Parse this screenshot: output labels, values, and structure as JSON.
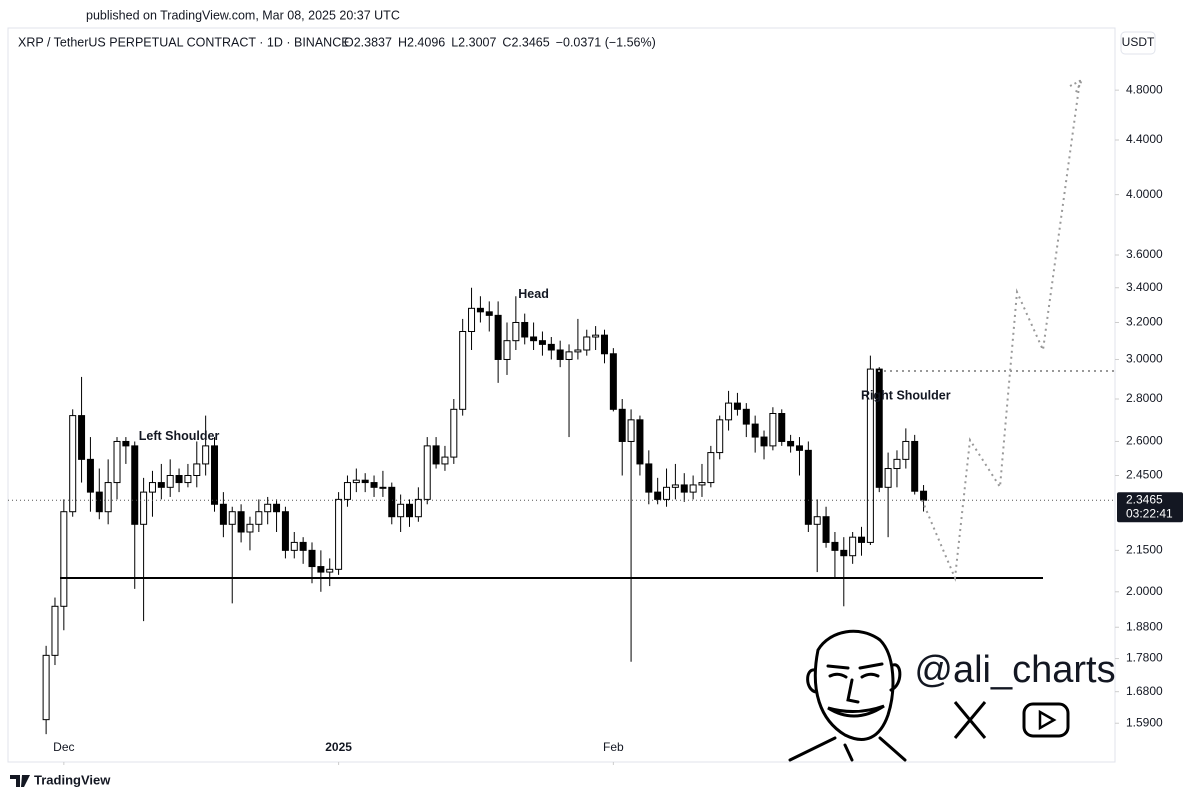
{
  "chart_data": {
    "type": "candlestick",
    "published": "published on TradingView.com, Mar 08, 2025 20:37 UTC",
    "symbol": "XRP / TetherUS PERPETUAL CONTRACT · 1D · BINANCE",
    "ohlc_text": [
      "O2.3837",
      "H2.4096",
      "L2.3007",
      "C2.3465",
      "−0.0371 (−1.56%)"
    ],
    "currency": "USDT",
    "price_label": "2.3465",
    "countdown": "03:22:41",
    "brand": "TradingView",
    "handle": "@ali_charts",
    "annotations": [
      {
        "text": "Left Shoulder",
        "index": 15
      },
      {
        "text": "Head",
        "index": 55
      },
      {
        "text": "Right Shoulder",
        "index": 97
      }
    ],
    "log_scale": true,
    "up_color": "#ffffff",
    "down_color": "#000000",
    "candles": [
      [
        1.6,
        1.82,
        1.56,
        1.79
      ],
      [
        1.79,
        1.98,
        1.76,
        1.95
      ],
      [
        1.95,
        2.35,
        1.87,
        2.3
      ],
      [
        2.3,
        2.75,
        2.28,
        2.72
      ],
      [
        2.72,
        2.91,
        2.42,
        2.52
      ],
      [
        2.52,
        2.62,
        2.3,
        2.38
      ],
      [
        2.38,
        2.48,
        2.27,
        2.3
      ],
      [
        2.3,
        2.52,
        2.25,
        2.42
      ],
      [
        2.42,
        2.62,
        2.35,
        2.6
      ],
      [
        2.6,
        2.62,
        2.5,
        2.58
      ],
      [
        2.58,
        2.6,
        2.01,
        2.25
      ],
      [
        2.25,
        2.44,
        1.9,
        2.38
      ],
      [
        2.38,
        2.47,
        2.28,
        2.42
      ],
      [
        2.42,
        2.5,
        2.35,
        2.4
      ],
      [
        2.4,
        2.52,
        2.36,
        2.45
      ],
      [
        2.45,
        2.48,
        2.38,
        2.42
      ],
      [
        2.42,
        2.5,
        2.4,
        2.45
      ],
      [
        2.45,
        2.6,
        2.4,
        2.5
      ],
      [
        2.5,
        2.72,
        2.45,
        2.58
      ],
      [
        2.58,
        2.62,
        2.3,
        2.33
      ],
      [
        2.33,
        2.38,
        2.2,
        2.25
      ],
      [
        2.25,
        2.32,
        1.96,
        2.3
      ],
      [
        2.3,
        2.33,
        2.18,
        2.22
      ],
      [
        2.22,
        2.28,
        2.15,
        2.25
      ],
      [
        2.25,
        2.35,
        2.22,
        2.3
      ],
      [
        2.3,
        2.36,
        2.25,
        2.33
      ],
      [
        2.33,
        2.35,
        2.22,
        2.3
      ],
      [
        2.3,
        2.32,
        2.12,
        2.15
      ],
      [
        2.15,
        2.22,
        2.12,
        2.18
      ],
      [
        2.18,
        2.2,
        2.1,
        2.15
      ],
      [
        2.15,
        2.18,
        2.03,
        2.09
      ],
      [
        2.09,
        2.15,
        2.0,
        2.07
      ],
      [
        2.07,
        2.12,
        2.02,
        2.08
      ],
      [
        2.08,
        2.38,
        2.06,
        2.35
      ],
      [
        2.35,
        2.45,
        2.32,
        2.42
      ],
      [
        2.42,
        2.48,
        2.38,
        2.43
      ],
      [
        2.43,
        2.46,
        2.38,
        2.42
      ],
      [
        2.42,
        2.45,
        2.36,
        2.4
      ],
      [
        2.4,
        2.47,
        2.36,
        2.4
      ],
      [
        2.4,
        2.42,
        2.25,
        2.28
      ],
      [
        2.28,
        2.37,
        2.22,
        2.33
      ],
      [
        2.33,
        2.35,
        2.24,
        2.28
      ],
      [
        2.28,
        2.4,
        2.26,
        2.35
      ],
      [
        2.35,
        2.62,
        2.33,
        2.58
      ],
      [
        2.58,
        2.62,
        2.48,
        2.5
      ],
      [
        2.5,
        2.58,
        2.47,
        2.53
      ],
      [
        2.53,
        2.8,
        2.5,
        2.75
      ],
      [
        2.75,
        3.22,
        2.72,
        3.15
      ],
      [
        3.15,
        3.4,
        3.05,
        3.28
      ],
      [
        3.28,
        3.35,
        3.2,
        3.26
      ],
      [
        3.26,
        3.32,
        3.15,
        3.24
      ],
      [
        3.24,
        3.32,
        2.88,
        3.0
      ],
      [
        3.0,
        3.2,
        2.92,
        3.1
      ],
      [
        3.1,
        3.35,
        3.05,
        3.2
      ],
      [
        3.2,
        3.25,
        3.08,
        3.12
      ],
      [
        3.12,
        3.2,
        3.05,
        3.1
      ],
      [
        3.1,
        3.15,
        3.02,
        3.08
      ],
      [
        3.08,
        3.12,
        3.0,
        3.05
      ],
      [
        3.05,
        3.1,
        2.96,
        3.0
      ],
      [
        3.0,
        3.08,
        2.62,
        3.04
      ],
      [
        3.04,
        3.22,
        3.0,
        3.05
      ],
      [
        3.05,
        3.16,
        3.02,
        3.12
      ],
      [
        3.12,
        3.18,
        3.05,
        3.13
      ],
      [
        3.13,
        3.16,
        2.98,
        3.03
      ],
      [
        3.03,
        3.06,
        2.74,
        2.75
      ],
      [
        2.75,
        2.8,
        2.45,
        2.6
      ],
      [
        2.6,
        2.75,
        1.77,
        2.7
      ],
      [
        2.7,
        2.72,
        2.45,
        2.5
      ],
      [
        2.5,
        2.56,
        2.33,
        2.38
      ],
      [
        2.38,
        2.44,
        2.33,
        2.35
      ],
      [
        2.35,
        2.48,
        2.32,
        2.4
      ],
      [
        2.4,
        2.5,
        2.35,
        2.41
      ],
      [
        2.41,
        2.46,
        2.34,
        2.38
      ],
      [
        2.38,
        2.45,
        2.35,
        2.41
      ],
      [
        2.41,
        2.5,
        2.36,
        2.42
      ],
      [
        2.42,
        2.58,
        2.4,
        2.55
      ],
      [
        2.55,
        2.72,
        2.52,
        2.7
      ],
      [
        2.7,
        2.84,
        2.65,
        2.78
      ],
      [
        2.78,
        2.83,
        2.72,
        2.75
      ],
      [
        2.75,
        2.78,
        2.62,
        2.68
      ],
      [
        2.68,
        2.72,
        2.55,
        2.62
      ],
      [
        2.62,
        2.65,
        2.52,
        2.58
      ],
      [
        2.58,
        2.76,
        2.56,
        2.73
      ],
      [
        2.73,
        2.75,
        2.58,
        2.6
      ],
      [
        2.6,
        2.63,
        2.55,
        2.58
      ],
      [
        2.58,
        2.62,
        2.45,
        2.56
      ],
      [
        2.56,
        2.6,
        2.22,
        2.25
      ],
      [
        2.25,
        2.35,
        2.07,
        2.28
      ],
      [
        2.28,
        2.32,
        2.16,
        2.18
      ],
      [
        2.18,
        2.22,
        2.05,
        2.15
      ],
      [
        2.15,
        2.2,
        1.95,
        2.13
      ],
      [
        2.13,
        2.22,
        2.1,
        2.2
      ],
      [
        2.2,
        2.24,
        2.13,
        2.18
      ],
      [
        2.18,
        3.02,
        2.17,
        2.95
      ],
      [
        2.95,
        2.96,
        2.38,
        2.4
      ],
      [
        2.4,
        2.55,
        2.2,
        2.48
      ],
      [
        2.48,
        2.56,
        2.4,
        2.52
      ],
      [
        2.52,
        2.66,
        2.48,
        2.6
      ],
      [
        2.6,
        2.63,
        2.37,
        2.3837
      ],
      [
        2.3837,
        2.4096,
        2.3007,
        2.3465
      ]
    ],
    "xlim": [
      -4.3,
      120.6
    ],
    "xticks": [
      {
        "value": 2,
        "label": "Dec"
      },
      {
        "value": 33,
        "label": "2025"
      },
      {
        "value": 64,
        "label": "Feb"
      }
    ],
    "ylim": [
      1.486,
      5.35
    ],
    "yticks": [
      {
        "value": 4.8,
        "label": "4.8000"
      },
      {
        "value": 4.4,
        "label": "4.4000"
      },
      {
        "value": 4.0,
        "label": "4.0000"
      },
      {
        "value": 3.6,
        "label": "3.6000"
      },
      {
        "value": 3.4,
        "label": "3.4000"
      },
      {
        "value": 3.2,
        "label": "3.2000"
      },
      {
        "value": 3.0,
        "label": "3.0000"
      },
      {
        "value": 2.8,
        "label": "2.8000"
      },
      {
        "value": 2.6,
        "label": "2.6000"
      },
      {
        "value": 2.45,
        "label": "2.4500"
      },
      {
        "value": 2.15,
        "label": "2.1500"
      },
      {
        "value": 2.0,
        "label": "2.0000"
      },
      {
        "value": 1.88,
        "label": "1.8800"
      },
      {
        "value": 1.78,
        "label": "1.7800"
      },
      {
        "value": 1.68,
        "label": "1.6800"
      },
      {
        "value": 1.59,
        "label": "1.5900"
      }
    ]
  }
}
